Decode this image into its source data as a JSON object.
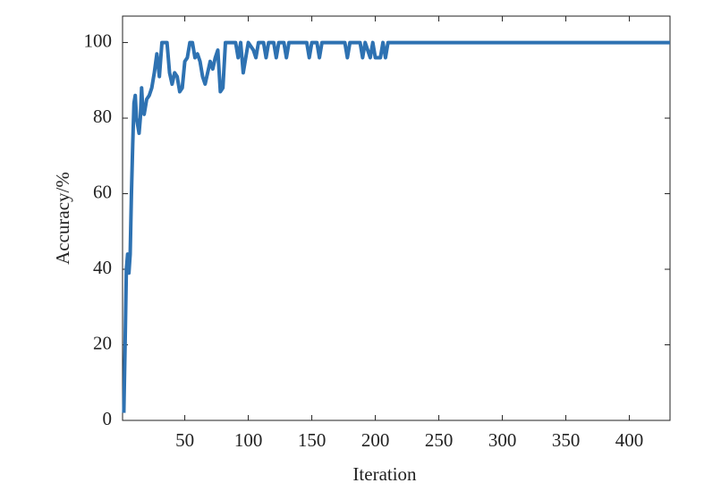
{
  "chart_data": {
    "type": "line",
    "xlabel": "Iteration",
    "ylabel": "Accuracy/%",
    "x": [
      2,
      3,
      4,
      5,
      6,
      7,
      8,
      9,
      10,
      11,
      12,
      13,
      14,
      15,
      16,
      17,
      18,
      20,
      22,
      24,
      26,
      28,
      30,
      32,
      36,
      38,
      40,
      42,
      44,
      46,
      48,
      50,
      52,
      54,
      56,
      58,
      60,
      62,
      64,
      66,
      68,
      70,
      72,
      74,
      76,
      78,
      80,
      82,
      90,
      92,
      94,
      96,
      98,
      100,
      104,
      106,
      108,
      112,
      114,
      116,
      120,
      122,
      124,
      128,
      130,
      132,
      146,
      148,
      150,
      154,
      156,
      158,
      176,
      178,
      180,
      188,
      190,
      192,
      196,
      198,
      200,
      204,
      206,
      208,
      210,
      432
    ],
    "series": [
      {
        "name": "Accuracy",
        "color": "#2e72b2",
        "values": [
          2,
          20,
          40,
          44,
          39,
          44,
          60,
          73,
          84,
          86,
          80,
          78,
          76,
          80,
          88,
          82,
          81,
          85,
          86,
          88,
          92,
          97,
          91,
          100,
          100,
          92,
          89,
          92,
          91,
          87,
          88,
          95,
          96,
          100,
          100,
          96,
          97,
          95,
          91,
          89,
          92,
          95,
          93,
          96,
          98,
          87,
          88,
          100,
          100,
          96,
          100,
          92,
          96,
          100,
          98,
          96,
          100,
          100,
          96,
          100,
          100,
          96,
          100,
          100,
          96,
          100,
          100,
          96,
          100,
          100,
          96,
          100,
          100,
          96,
          100,
          100,
          96,
          100,
          96,
          100,
          96,
          96,
          100,
          96,
          100,
          100
        ]
      }
    ],
    "xlim": [
      1,
      432
    ],
    "ylim": [
      0,
      107
    ],
    "xticks": [
      50,
      100,
      150,
      200,
      250,
      300,
      350,
      400
    ],
    "yticks": [
      0,
      20,
      40,
      60,
      80,
      100
    ]
  }
}
